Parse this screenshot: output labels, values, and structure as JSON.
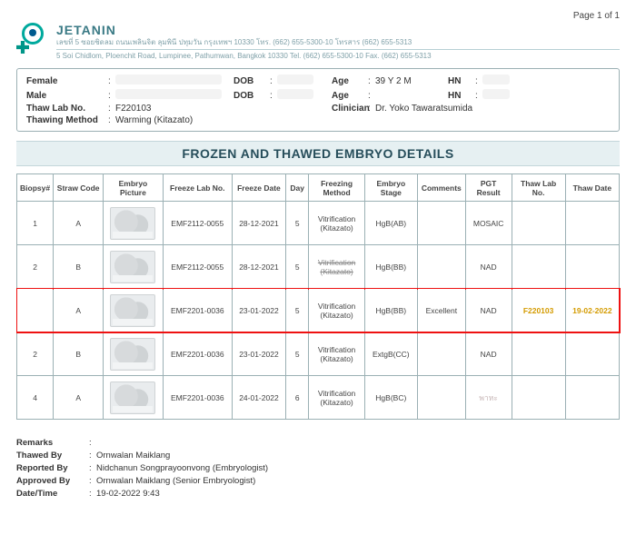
{
  "page_label": "Page 1 of 1",
  "brand": "JETANIN",
  "address_line1": "เลขที่ 5 ซอยชิดลม ถนนเพลินจิต ลุมพินี ปทุมวัน กรุงเทพฯ 10330 โทร. (662) 655-5300-10 โทรสาร (662) 655-5313",
  "address_line2": "5 Soi Chidlom, Ploenchit Road, Lumpinee, Pathumwan, Bangkok 10330 Tel. (662) 655-5300-10 Fax. (662) 655-5313",
  "patient": {
    "female_lbl": "Female",
    "dob_lbl": "DOB",
    "age_lbl": "Age",
    "hn_lbl": "HN",
    "male_lbl": "Male",
    "thaw_lab_lbl": "Thaw Lab No.",
    "thaw_lab_val": "F220103",
    "thaw_method_lbl": "Thawing Method",
    "thaw_method_val": "Warming (Kitazato)",
    "age_val": "39 Y 2 M",
    "clinician_lbl": "Clinician",
    "clinician_val": "Dr. Yoko  Tawaratsumida"
  },
  "title": "FROZEN AND THAWED EMBRYO DETAILS",
  "columns": {
    "biopsy": "Biopsy#",
    "straw": "Straw Code",
    "pic": "Embryo Picture",
    "flab": "Freeze Lab No.",
    "fdate": "Freeze Date",
    "day": "Day",
    "fmeth": "Freezing Method",
    "stage": "Embryo Stage",
    "comments": "Comments",
    "pgt": "PGT Result",
    "tlab": "Thaw Lab No.",
    "tdate": "Thaw Date"
  },
  "rows": [
    {
      "biopsy": "1",
      "straw": "A",
      "flab": "EMF2112-0055",
      "fdate": "28-12-2021",
      "day": "5",
      "fmeth": "Vitrification (Kitazato)",
      "stage": "HgB(AB)",
      "comments": "",
      "pgt": "MOSAIC",
      "tlab": "",
      "tdate": "",
      "hl": false,
      "strike": false,
      "pale": false
    },
    {
      "biopsy": "2",
      "straw": "B",
      "flab": "EMF2112-0055",
      "fdate": "28-12-2021",
      "day": "5",
      "fmeth": "Vitrification (Kitazato)",
      "stage": "HgB(BB)",
      "comments": "",
      "pgt": "NAD",
      "tlab": "",
      "tdate": "",
      "hl": false,
      "strike": true,
      "pale": false
    },
    {
      "biopsy": "",
      "straw": "A",
      "flab": "EMF2201-0036",
      "fdate": "23-01-2022",
      "day": "5",
      "fmeth": "Vitrification (Kitazato)",
      "stage": "HgB(BB)",
      "comments": "Excellent",
      "pgt": "NAD",
      "tlab": "F220103",
      "tdate": "19-02-2022",
      "hl": true,
      "strike": false,
      "pale": false
    },
    {
      "biopsy": "2",
      "straw": "B",
      "flab": "EMF2201-0036",
      "fdate": "23-01-2022",
      "day": "5",
      "fmeth": "Vitrification (Kitazato)",
      "stage": "ExtgB(CC)",
      "comments": "",
      "pgt": "NAD",
      "tlab": "",
      "tdate": "",
      "hl": false,
      "strike": false,
      "pale": false
    },
    {
      "biopsy": "4",
      "straw": "A",
      "flab": "EMF2201-0036",
      "fdate": "24-01-2022",
      "day": "6",
      "fmeth": "Vitrification (Kitazato)",
      "stage": "HgB(BC)",
      "comments": "",
      "pgt": "พาหะ",
      "tlab": "",
      "tdate": "",
      "hl": false,
      "strike": false,
      "pale": true
    }
  ],
  "footer": {
    "remarks_lbl": "Remarks",
    "remarks_val": "",
    "thawed_lbl": "Thawed By",
    "thawed_val": "Ornwalan Maiklang",
    "reported_lbl": "Reported By",
    "reported_val": "Nidchanun Songprayoonvong (Embryologist)",
    "approved_lbl": "Approved By",
    "approved_val": "Ornwalan Maiklang (Senior Embryologist)",
    "datetime_lbl": "Date/Time",
    "datetime_val": "19-02-2022  9:43"
  },
  "colon": ":"
}
